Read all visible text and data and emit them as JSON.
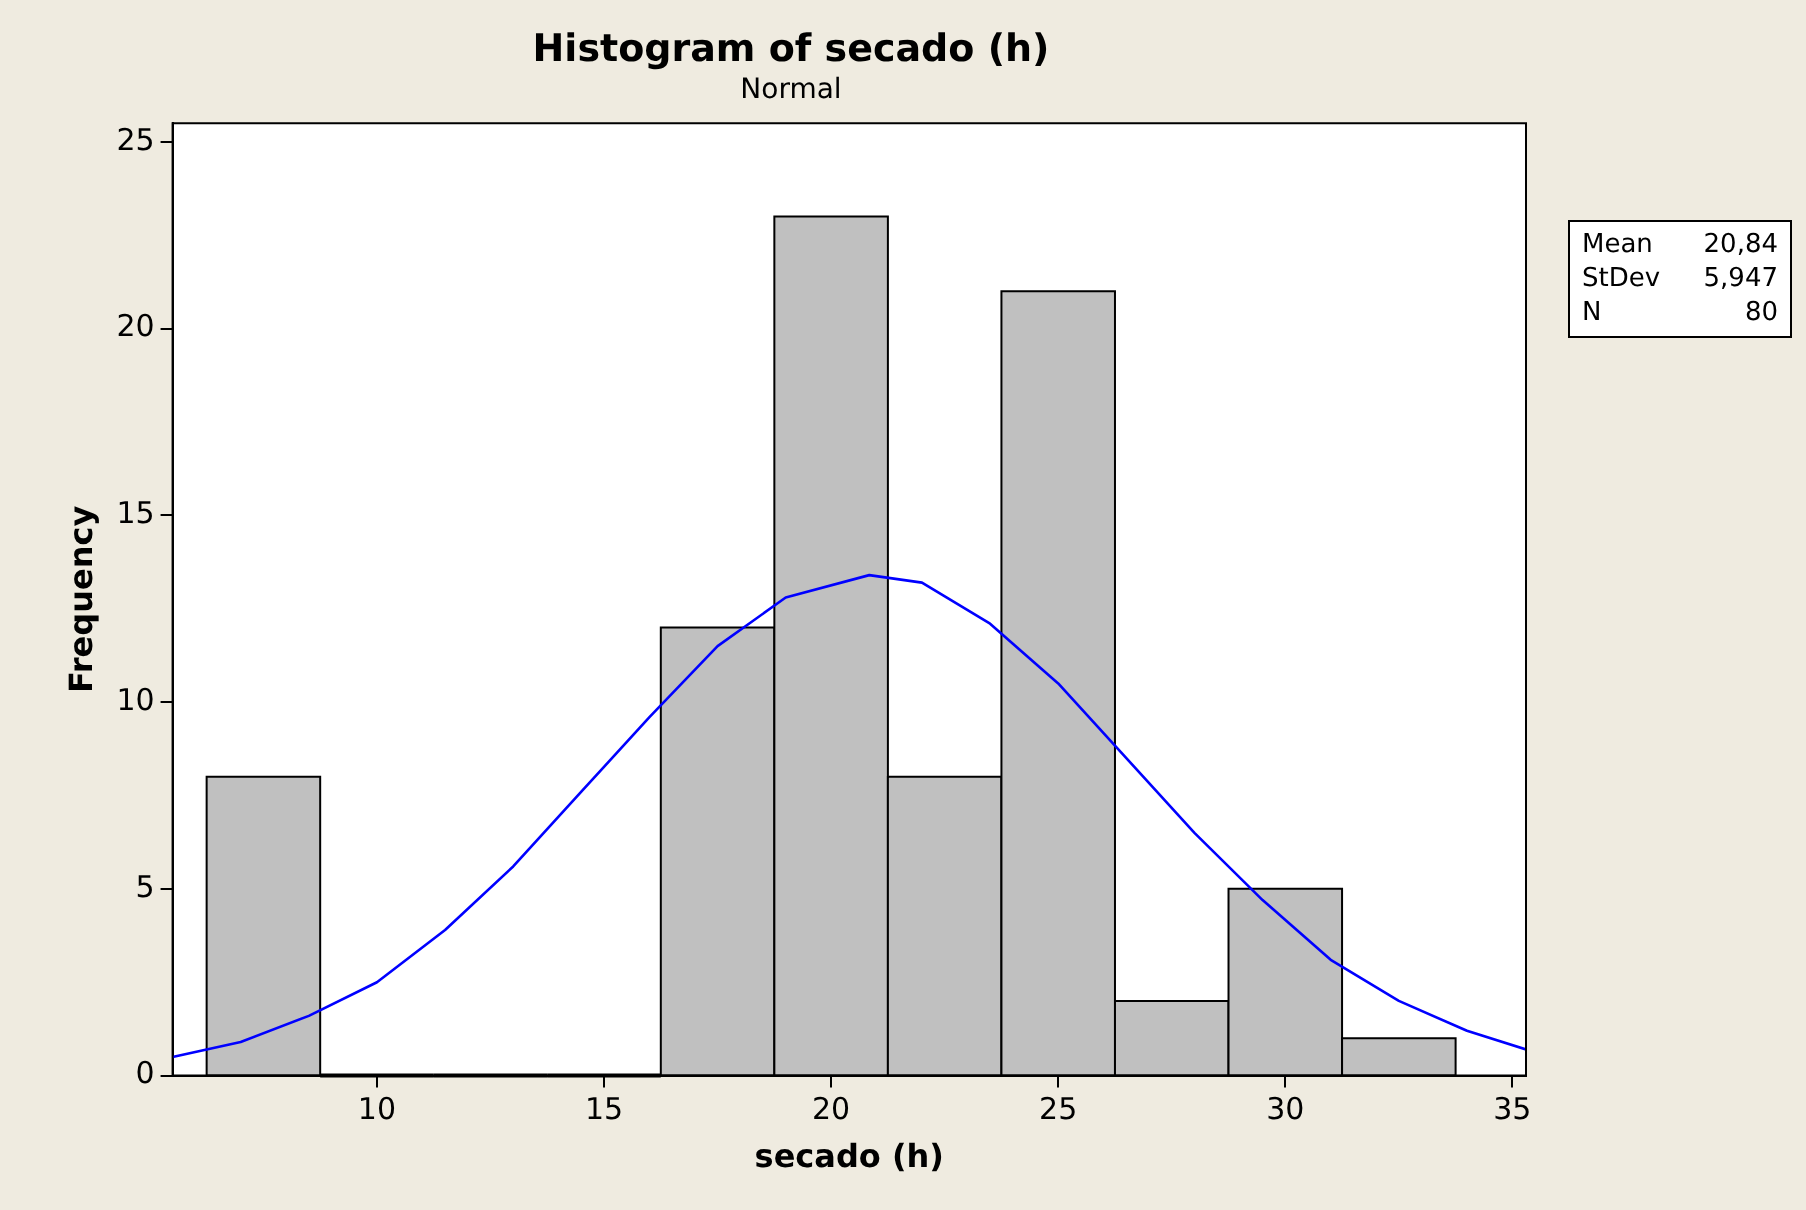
{
  "chart_data": {
    "type": "histogram",
    "title": "Histogram of secado (h)",
    "subtitle": "Normal",
    "xlabel": "secado (h)",
    "ylabel": "Frequency",
    "bins": [
      6.25,
      8.75,
      11.25,
      13.75,
      16.25,
      18.75,
      21.25,
      23.75,
      26.25,
      28.75,
      31.25,
      33.75
    ],
    "series": [
      {
        "type": "histogram",
        "color": "#c0c0c0",
        "values": [
          8,
          0,
          0,
          0,
          12,
          23,
          8,
          21,
          2,
          5,
          1
        ]
      },
      {
        "type": "line",
        "color": "#0000ff",
        "x": [
          5.5,
          7,
          8.5,
          10,
          11.5,
          13,
          14.5,
          16,
          17.5,
          19,
          20.84,
          22,
          23.5,
          25,
          26.5,
          28,
          29.5,
          31,
          32.5,
          34,
          35.3
        ],
        "values": [
          0.5,
          0.9,
          1.6,
          2.5,
          3.9,
          5.6,
          7.6,
          9.6,
          11.5,
          12.8,
          13.4,
          13.2,
          12.1,
          10.5,
          8.5,
          6.5,
          4.7,
          3.1,
          2.0,
          1.2,
          0.7
        ]
      }
    ],
    "xlim": [
      5.5,
      35.3
    ],
    "xticks": [
      10,
      15,
      20,
      25,
      30,
      35
    ],
    "ylim": [
      0,
      25.5
    ],
    "yticks": [
      0,
      5,
      10,
      15,
      20,
      25
    ],
    "grid": false,
    "legend": false,
    "marker": "none",
    "line_style": "solid",
    "annotations": [
      "Mean 20,84",
      "StDev 5,947",
      "N 80"
    ]
  }
}
